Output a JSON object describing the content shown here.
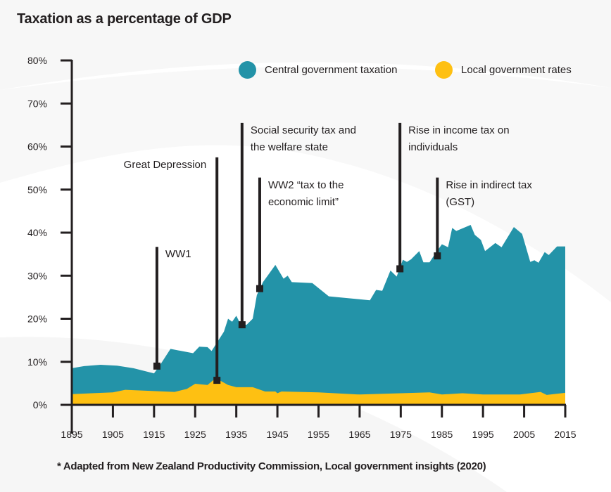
{
  "colors": {
    "central": "#2393a8",
    "local": "#fec012",
    "axis": "#231f20",
    "background_swoosh": "#f7f7f7"
  },
  "chart_data": {
    "type": "area",
    "stacked": true,
    "title": "Taxation as a percentage of GDP",
    "xlabel": "",
    "ylabel": "",
    "xlim": [
      1895,
      2015
    ],
    "ylim": [
      0,
      80
    ],
    "x_ticks": [
      1895,
      1905,
      1915,
      1925,
      1935,
      1945,
      1955,
      1965,
      1975,
      1985,
      1995,
      2005,
      2015
    ],
    "y_ticks": [
      0,
      10,
      20,
      30,
      40,
      50,
      60,
      70,
      80
    ],
    "y_tick_labels": [
      "0%",
      "10%",
      "20%",
      "30%",
      "40%",
      "50%",
      "60%",
      "70%",
      "80%"
    ],
    "grid": false,
    "legend_position": "top-right",
    "series": [
      {
        "name": "Central government taxation",
        "color": "#2393a8",
        "note": "values are total (stack top) in % of GDP",
        "points": [
          [
            1895,
            8.5
          ],
          [
            1898,
            9.0
          ],
          [
            1902,
            9.3
          ],
          [
            1906,
            9.1
          ],
          [
            1910,
            8.5
          ],
          [
            1915,
            7.3
          ],
          [
            1916.5,
            9.3
          ],
          [
            1919,
            13.0
          ],
          [
            1924.5,
            12.0
          ],
          [
            1926,
            13.5
          ],
          [
            1928,
            13.4
          ],
          [
            1929,
            12.5
          ],
          [
            1932,
            17.0
          ],
          [
            1933,
            20.0
          ],
          [
            1934,
            19.3
          ],
          [
            1935,
            20.7
          ],
          [
            1936,
            18.8
          ],
          [
            1937.5,
            18.6
          ],
          [
            1939,
            20.0
          ],
          [
            1940,
            25.5
          ],
          [
            1941.5,
            28.5
          ],
          [
            1944.5,
            32.5
          ],
          [
            1946.5,
            29.3
          ],
          [
            1947.5,
            30.0
          ],
          [
            1948.5,
            28.5
          ],
          [
            1953.5,
            28.3
          ],
          [
            1957.5,
            25.2
          ],
          [
            1967.5,
            24.3
          ],
          [
            1969,
            26.7
          ],
          [
            1970.5,
            26.5
          ],
          [
            1972.5,
            31.2
          ],
          [
            1974,
            29.8
          ],
          [
            1975.5,
            33.7
          ],
          [
            1976.5,
            33.2
          ],
          [
            1977.5,
            33.8
          ],
          [
            1979.5,
            35.7
          ],
          [
            1980.5,
            33.1
          ],
          [
            1982,
            33.1
          ],
          [
            1983.5,
            35.3
          ],
          [
            1985,
            37.3
          ],
          [
            1986.5,
            36.6
          ],
          [
            1987.5,
            41.1
          ],
          [
            1988.5,
            40.4
          ],
          [
            1992,
            41.8
          ],
          [
            1993,
            39.5
          ],
          [
            1994.5,
            38.3
          ],
          [
            1995.5,
            35.7
          ],
          [
            1998,
            37.6
          ],
          [
            1999.5,
            36.6
          ],
          [
            2002.5,
            41.3
          ],
          [
            2004.5,
            39.7
          ],
          [
            2006.5,
            33.2
          ],
          [
            2007.5,
            33.6
          ],
          [
            2008.5,
            33.0
          ],
          [
            2010,
            35.5
          ],
          [
            2011,
            34.8
          ],
          [
            2013,
            36.8
          ],
          [
            2015,
            36.8
          ]
        ]
      },
      {
        "name": "Local government rates",
        "color": "#fec012",
        "note": "values in % of GDP",
        "points": [
          [
            1895,
            2.5
          ],
          [
            1905,
            2.9
          ],
          [
            1908,
            3.5
          ],
          [
            1915,
            3.2
          ],
          [
            1920,
            3.0
          ],
          [
            1923,
            3.7
          ],
          [
            1925,
            4.9
          ],
          [
            1928,
            4.6
          ],
          [
            1930,
            6.2
          ],
          [
            1933,
            4.6
          ],
          [
            1935,
            4.1
          ],
          [
            1939,
            4.1
          ],
          [
            1942,
            3.1
          ],
          [
            1944.5,
            3.1
          ],
          [
            1945,
            2.7
          ],
          [
            1946,
            3.1
          ],
          [
            1955,
            2.9
          ],
          [
            1965,
            2.4
          ],
          [
            1975,
            2.7
          ],
          [
            1982,
            2.9
          ],
          [
            1985,
            2.4
          ],
          [
            1990,
            2.7
          ],
          [
            1995,
            2.4
          ],
          [
            2004,
            2.4
          ],
          [
            2009,
            3.0
          ],
          [
            2010.5,
            2.3
          ],
          [
            2015,
            2.8
          ]
        ]
      }
    ],
    "annotations": [
      {
        "id": "ww1",
        "label_lines": [
          "WW1"
        ],
        "year": 1915.7,
        "line_top": 36.7,
        "marker": 9.0,
        "label_side": "right"
      },
      {
        "id": "great-depression",
        "label_lines": [
          "Great Depression"
        ],
        "year": 1930.3,
        "line_top": 57.5,
        "marker": 5.7,
        "label_side": "left"
      },
      {
        "id": "social-security",
        "label_lines": [
          "Social security tax and",
          "the welfare state"
        ],
        "year": 1936.4,
        "line_top": 65.5,
        "marker": 18.6,
        "label_side": "right"
      },
      {
        "id": "ww2",
        "label_lines": [
          "WW2 “tax to the",
          "economic limit”"
        ],
        "year": 1940.7,
        "line_top": 52.8,
        "marker": 27.0,
        "label_side": "right"
      },
      {
        "id": "income-tax",
        "label_lines": [
          "Rise in income tax on",
          "individuals"
        ],
        "year": 1974.8,
        "line_top": 65.5,
        "marker": 31.6,
        "label_side": "right"
      },
      {
        "id": "gst",
        "label_lines": [
          "Rise in indirect tax",
          "(GST)"
        ],
        "year": 1983.9,
        "line_top": 52.8,
        "marker": 34.6,
        "label_side": "right"
      }
    ]
  },
  "legend": [
    {
      "label": "Central government taxation",
      "color": "#2393a8"
    },
    {
      "label": "Local government rates",
      "color": "#fec012"
    }
  ],
  "source_note": "* Adapted from New Zealand Productivity Commission, Local government insights (2020)"
}
